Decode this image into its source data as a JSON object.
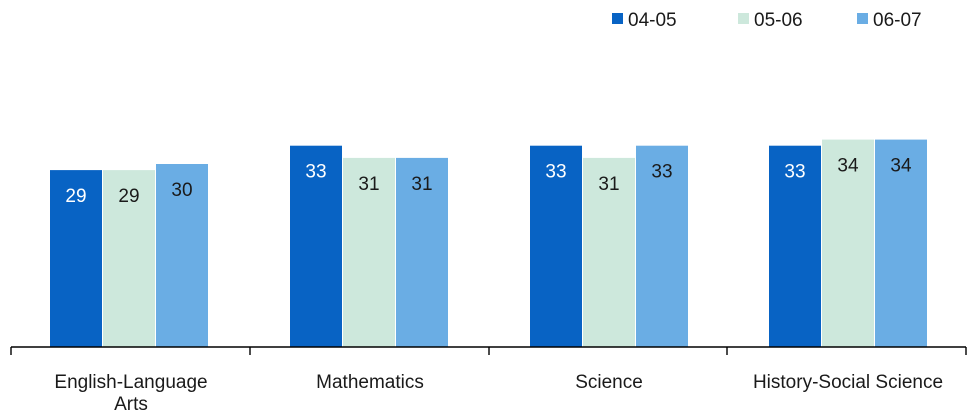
{
  "chart_data": {
    "type": "bar",
    "title": "",
    "xlabel": "",
    "ylabel": "",
    "ylim": [
      0,
      40
    ],
    "grid": false,
    "legend_position": "top-right",
    "categories": [
      "English-Language Arts",
      "Mathematics",
      "Science",
      "History-Social Science"
    ],
    "category_lines": [
      [
        "English-Language",
        "Arts"
      ],
      [
        "Mathematics"
      ],
      [
        "Science"
      ],
      [
        "History-Social Science"
      ]
    ],
    "series": [
      {
        "name": "04-05",
        "color": "#0863C4",
        "label_color": "#ffffff",
        "values": [
          29,
          33,
          33,
          33
        ]
      },
      {
        "name": "05-06",
        "color": "#CDE8DC",
        "label_color": "#1a1a1a",
        "values": [
          29,
          31,
          31,
          34
        ]
      },
      {
        "name": "06-07",
        "color": "#6AADE4",
        "label_color": "#1a1a1a",
        "values": [
          30,
          31,
          33,
          34
        ]
      }
    ]
  }
}
